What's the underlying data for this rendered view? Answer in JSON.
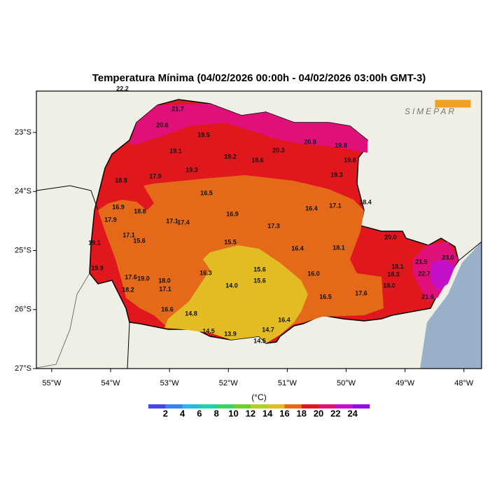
{
  "map": {
    "title": "Temperatura Mínima (04/02/2026 00:00h - 04/02/2026 03:00h GMT-3)",
    "logo": "SIMEPAR",
    "xlim": [
      -55.26,
      -47.7
    ],
    "ylim": [
      -27.0,
      -22.3
    ],
    "xticks": [
      {
        "value": -55,
        "label": "55°W"
      },
      {
        "value": -54,
        "label": "54°W"
      },
      {
        "value": -53,
        "label": "53°W"
      },
      {
        "value": -52,
        "label": "52°W"
      },
      {
        "value": -51,
        "label": "51°W"
      },
      {
        "value": -50,
        "label": "50°W"
      },
      {
        "value": -49,
        "label": "49°W"
      },
      {
        "value": -48,
        "label": "48°W"
      }
    ],
    "yticks": [
      {
        "value": -23,
        "label": "23°S"
      },
      {
        "value": -24,
        "label": "24°S"
      },
      {
        "value": -25,
        "label": "25°S"
      },
      {
        "value": -26,
        "label": "26°S"
      },
      {
        "value": -27,
        "label": "27°S"
      }
    ],
    "stations": [
      "22.2",
      "21.7",
      "20.6",
      "19.5",
      "20.8",
      "19.8",
      "20.3",
      "19.1",
      "19.2",
      "18.6",
      "19.8",
      "19.3",
      "17.9",
      "19.3",
      "18.8",
      "16.5",
      "18.4",
      "16.9",
      "18.8",
      "16.4",
      "17.1",
      "16.9",
      "17.9",
      "17.1",
      "17.4",
      "17.3",
      "17.1",
      "15.6",
      "20.0",
      "19.1",
      "15.5",
      "16.4",
      "18.1",
      "23.0",
      "21.5",
      "19.9",
      "15.6",
      "16.3",
      "16.0",
      "18.1",
      "18.3",
      "17.6",
      "19.0",
      "18.0",
      "15.6",
      "22.7",
      "14.0",
      "18.0",
      "17.1",
      "18.2",
      "17.6",
      "16.5",
      "21.6",
      "16.6",
      "14.8",
      "16.4",
      "14.5",
      "14.7",
      "13.9",
      "14.5"
    ],
    "colorbar": {
      "unit": "(°C)",
      "clim": [
        0,
        26
      ],
      "ticks": [
        2,
        4,
        6,
        8,
        10,
        12,
        14,
        16,
        18,
        20,
        22,
        24
      ],
      "colors": [
        "#4848e0",
        "#3c80e8",
        "#28b8e0",
        "#20d0a8",
        "#40d060",
        "#68d030",
        "#b0d028",
        "#e2bc22",
        "#e46a1a",
        "#e0181e",
        "#e0107a",
        "#c410c8",
        "#9010e8"
      ]
    }
  }
}
